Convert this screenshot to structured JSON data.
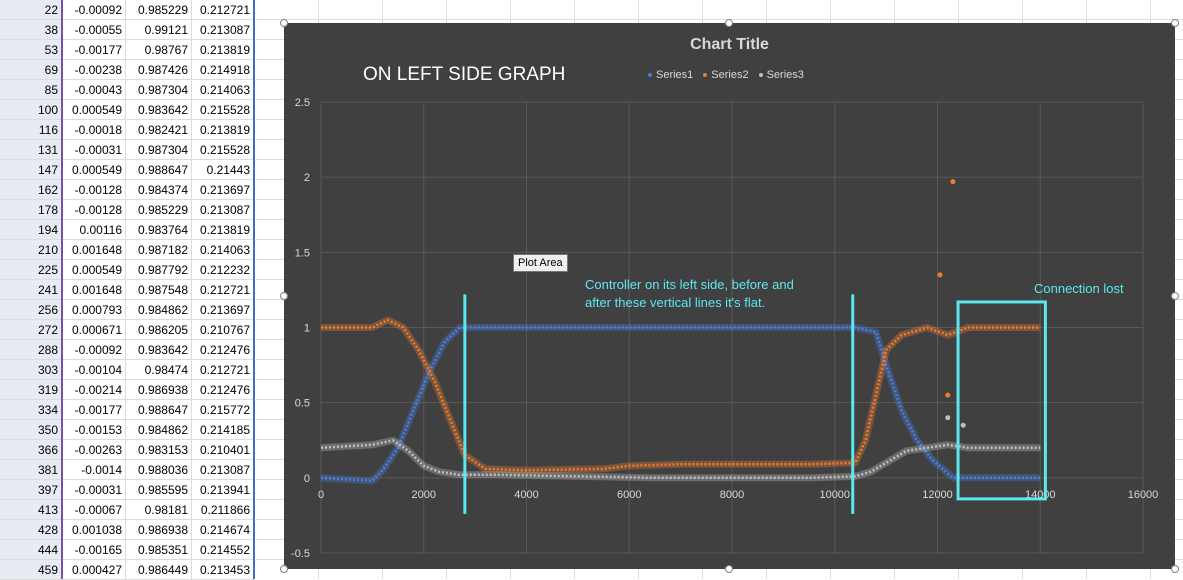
{
  "sheet": {
    "rows": [
      [
        "22",
        "-0.00092",
        "0.985229",
        "0.212721"
      ],
      [
        "38",
        "-0.00055",
        "0.99121",
        "0.213087"
      ],
      [
        "53",
        "-0.00177",
        "0.98767",
        "0.213819"
      ],
      [
        "69",
        "-0.00238",
        "0.987426",
        "0.214918"
      ],
      [
        "85",
        "-0.00043",
        "0.987304",
        "0.214063"
      ],
      [
        "100",
        "0.000549",
        "0.983642",
        "0.215528"
      ],
      [
        "116",
        "-0.00018",
        "0.982421",
        "0.213819"
      ],
      [
        "131",
        "-0.00031",
        "0.987304",
        "0.215528"
      ],
      [
        "147",
        "0.000549",
        "0.988647",
        "0.21443"
      ],
      [
        "162",
        "-0.00128",
        "0.984374",
        "0.213697"
      ],
      [
        "178",
        "-0.00128",
        "0.985229",
        "0.213087"
      ],
      [
        "194",
        "0.00116",
        "0.983764",
        "0.213819"
      ],
      [
        "210",
        "0.001648",
        "0.987182",
        "0.214063"
      ],
      [
        "225",
        "0.000549",
        "0.987792",
        "0.212232"
      ],
      [
        "241",
        "0.001648",
        "0.987548",
        "0.212721"
      ],
      [
        "256",
        "0.000793",
        "0.984862",
        "0.213697"
      ],
      [
        "272",
        "0.000671",
        "0.986205",
        "0.210767"
      ],
      [
        "288",
        "-0.00092",
        "0.983642",
        "0.212476"
      ],
      [
        "303",
        "-0.00104",
        "0.98474",
        "0.212721"
      ],
      [
        "319",
        "-0.00214",
        "0.986938",
        "0.212476"
      ],
      [
        "334",
        "-0.00177",
        "0.988647",
        "0.215772"
      ],
      [
        "350",
        "-0.00153",
        "0.984862",
        "0.214185"
      ],
      [
        "366",
        "-0.00263",
        "0.983153",
        "0.210401"
      ],
      [
        "381",
        "-0.0014",
        "0.988036",
        "0.213087"
      ],
      [
        "397",
        "-0.00031",
        "0.985595",
        "0.213941"
      ],
      [
        "413",
        "-0.00067",
        "0.98181",
        "0.211866"
      ],
      [
        "428",
        "0.001038",
        "0.986938",
        "0.214674"
      ],
      [
        "444",
        "-0.00165",
        "0.985351",
        "0.214552"
      ],
      [
        "459",
        "0.000427",
        "0.986449",
        "0.213453"
      ]
    ]
  },
  "chart_data": {
    "type": "scatter",
    "title": "Chart Title",
    "xlim": [
      0,
      16000
    ],
    "ylim": [
      -0.5,
      2.5
    ],
    "x_ticks": [
      "0",
      "2000",
      "4000",
      "6000",
      "8000",
      "10000",
      "12000",
      "14000",
      "16000"
    ],
    "y_ticks": [
      "-0.5",
      "0",
      "0.5",
      "1",
      "1.5",
      "2",
      "2.5"
    ],
    "grid": true,
    "legend_position": "top",
    "series": [
      {
        "name": "Series1",
        "color": "#4a7fe0",
        "points": [
          [
            0,
            0
          ],
          [
            1000,
            -0.02
          ],
          [
            1200,
            0.05
          ],
          [
            1500,
            0.2
          ],
          [
            1800,
            0.45
          ],
          [
            2100,
            0.7
          ],
          [
            2400,
            0.9
          ],
          [
            2700,
            1.0
          ],
          [
            3500,
            1.0
          ],
          [
            5000,
            1.0
          ],
          [
            6500,
            1.0
          ],
          [
            8000,
            1.0
          ],
          [
            9500,
            1.0
          ],
          [
            10400,
            1.0
          ],
          [
            10800,
            0.97
          ],
          [
            11000,
            0.75
          ],
          [
            11300,
            0.45
          ],
          [
            11600,
            0.25
          ],
          [
            11900,
            0.12
          ],
          [
            12300,
            0.0
          ],
          [
            12600,
            0.0
          ],
          [
            13200,
            0.0
          ],
          [
            14000,
            0.0
          ]
        ]
      },
      {
        "name": "Series2",
        "color": "#ed7d31",
        "points": [
          [
            0,
            1.0
          ],
          [
            1000,
            1.0
          ],
          [
            1300,
            1.05
          ],
          [
            1600,
            1.0
          ],
          [
            1900,
            0.85
          ],
          [
            2200,
            0.65
          ],
          [
            2500,
            0.4
          ],
          [
            2800,
            0.15
          ],
          [
            3200,
            0.06
          ],
          [
            4000,
            0.05
          ],
          [
            5500,
            0.06
          ],
          [
            6000,
            0.08
          ],
          [
            7000,
            0.09
          ],
          [
            8000,
            0.09
          ],
          [
            9500,
            0.09
          ],
          [
            10400,
            0.1
          ],
          [
            10600,
            0.25
          ],
          [
            10800,
            0.55
          ],
          [
            11000,
            0.85
          ],
          [
            11300,
            0.95
          ],
          [
            11800,
            1.0
          ],
          [
            12200,
            0.95
          ],
          [
            12600,
            1.0
          ],
          [
            13200,
            1.0
          ],
          [
            14000,
            1.0
          ]
        ],
        "outliers": [
          [
            12300,
            1.97
          ],
          [
            12050,
            1.35
          ],
          [
            12200,
            0.55
          ]
        ]
      },
      {
        "name": "Series3",
        "color": "#bfbfbf",
        "points": [
          [
            0,
            0.2
          ],
          [
            1000,
            0.22
          ],
          [
            1400,
            0.25
          ],
          [
            1700,
            0.18
          ],
          [
            2000,
            0.08
          ],
          [
            2300,
            0.04
          ],
          [
            2700,
            0.02
          ],
          [
            3500,
            0.02
          ],
          [
            5000,
            0.01
          ],
          [
            6500,
            0.0
          ],
          [
            8000,
            0.0
          ],
          [
            9500,
            0.0
          ],
          [
            10400,
            0.01
          ],
          [
            10700,
            0.04
          ],
          [
            11000,
            0.1
          ],
          [
            11400,
            0.18
          ],
          [
            11800,
            0.2
          ],
          [
            12200,
            0.22
          ],
          [
            12600,
            0.2
          ],
          [
            13200,
            0.2
          ],
          [
            14000,
            0.2
          ]
        ],
        "outliers": [
          [
            12200,
            0.4
          ],
          [
            12500,
            0.35
          ]
        ]
      }
    ],
    "annotations": {
      "main_note": "ON LEFT SIDE GRAPH",
      "controller_note_line1": "Controller on its left side, before and",
      "controller_note_line2": "after these vertical lines it's flat.",
      "connection_note": "Connection lost",
      "tooltip": "Plot Area"
    },
    "marker_lines_x": [
      2800,
      10350
    ],
    "connection_box_x": [
      12400,
      14100
    ],
    "annotation_color": "#5ce8ef"
  }
}
